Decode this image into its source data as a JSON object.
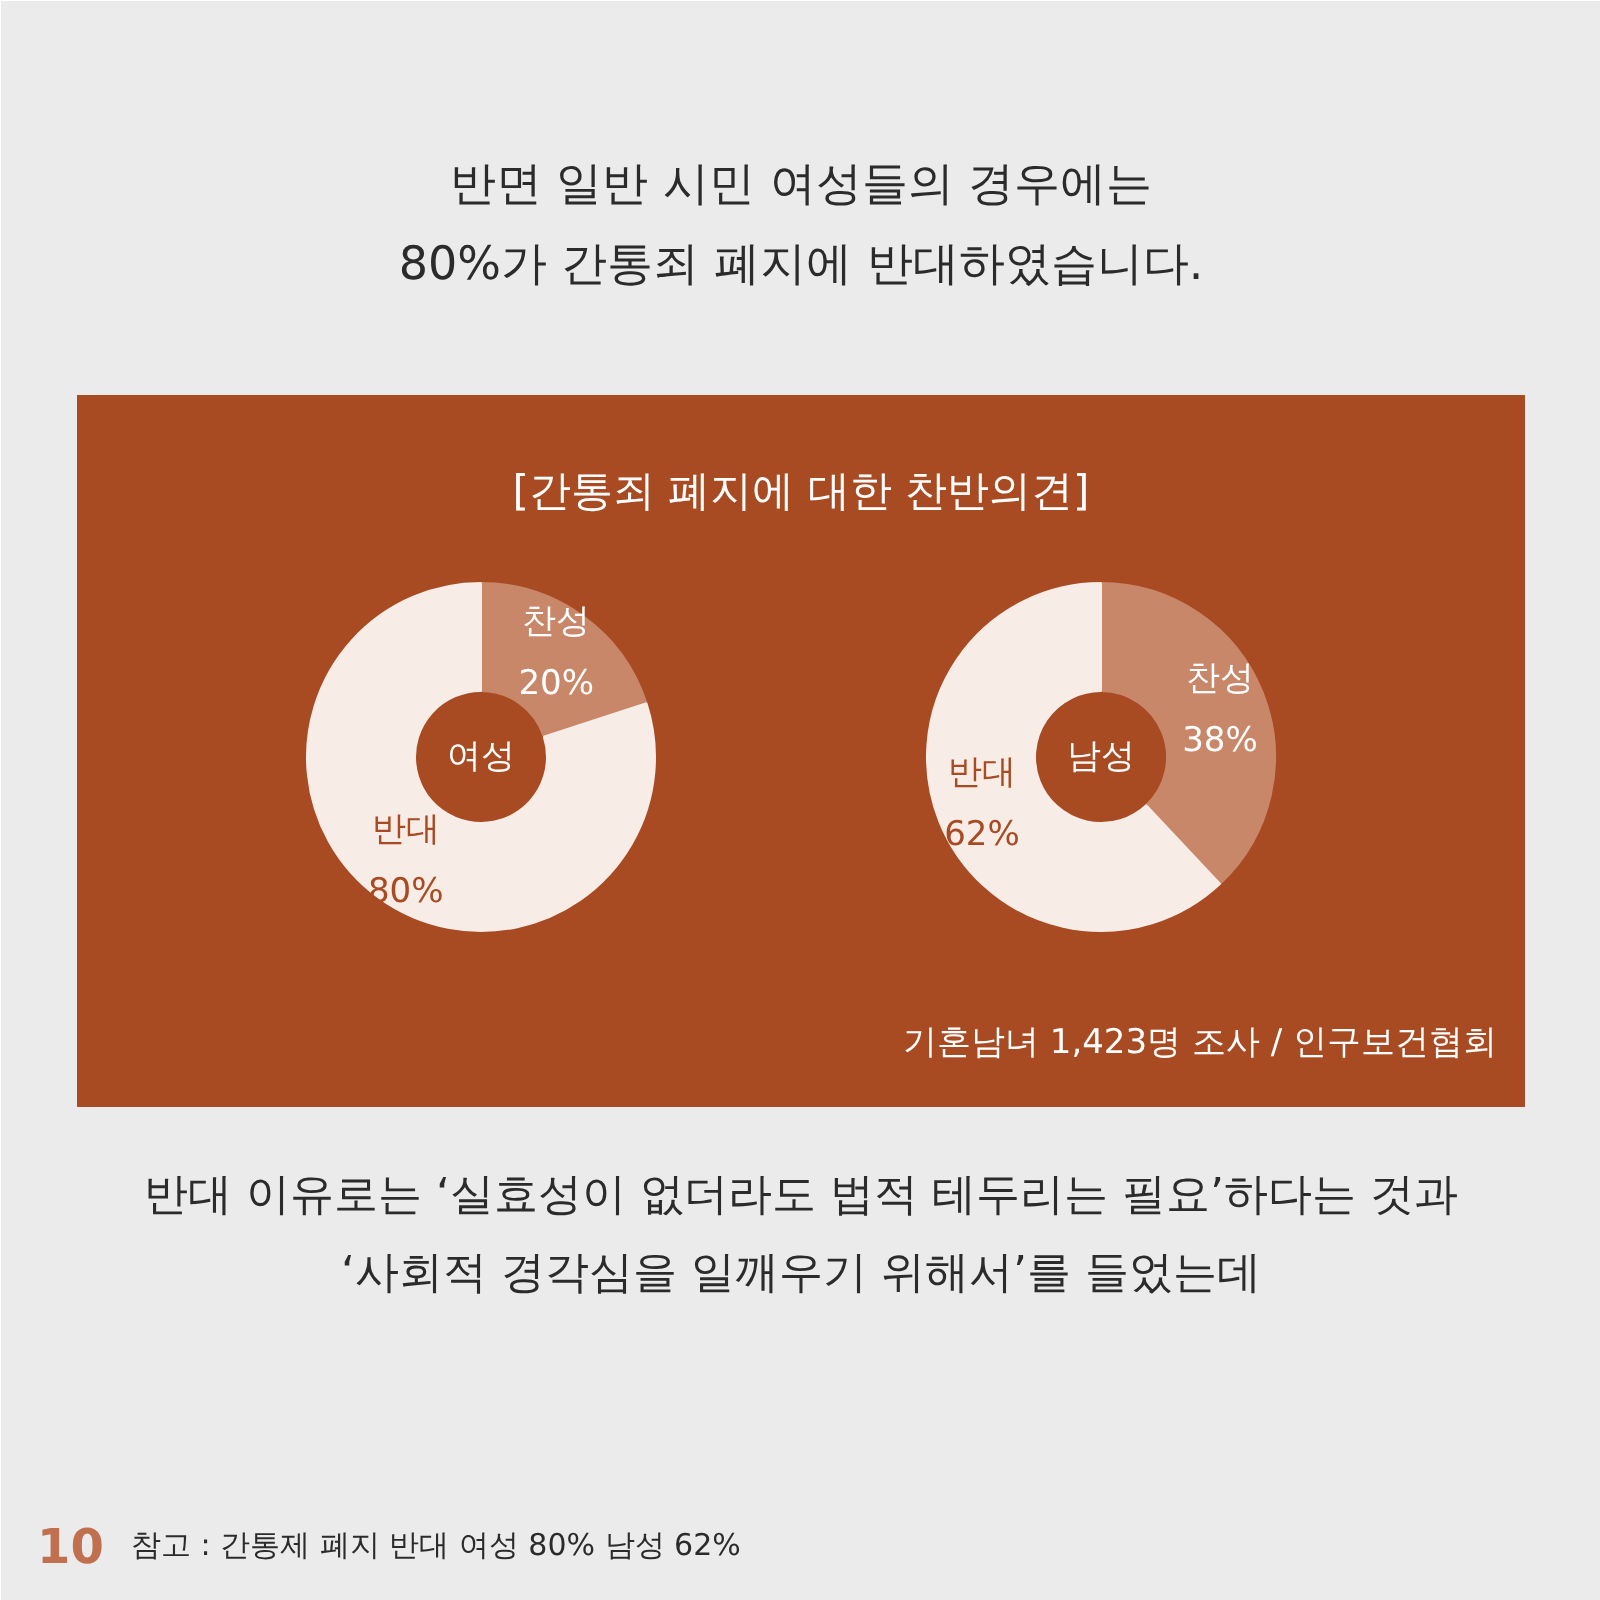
{
  "chart_data": [
    {
      "type": "other",
      "title": "반면 일반 시민 여성들의 경우에는\n80%가 간통죄 폐지에 반대하였습니다.",
      "subtitle": "[간통죄 폐지에 대한 찬반의견]"
    },
    {
      "type": "donut",
      "title": "여성",
      "categories": [
        "찬성",
        "반대"
      ],
      "values": [
        20,
        80
      ],
      "colors": [
        "#c98769",
        "#f7ece6"
      ],
      "value_labels": [
        "20%",
        "80%"
      ]
    },
    {
      "type": "donut",
      "title": "남성",
      "categories": [
        "찬성",
        "반대"
      ],
      "values": [
        38,
        62
      ],
      "colors": [
        "#c98769",
        "#f7ece6"
      ],
      "value_labels": [
        "38%",
        "62%"
      ]
    },
    {
      "type": "other",
      "annotations": [
        "기혼남녀 1,423명 조사 / 인구보건협회",
        "반대 이유로는 ‘실효성이 없더라도 법적 테두리는 필요’하다는 것과\n‘사회적 경각심을 일깨우기 위해서’를 들었는데",
        "10",
        "참고 : 간통제 폐지 반대 여성 80% 남성 62%"
      ]
    }
  ]
}
